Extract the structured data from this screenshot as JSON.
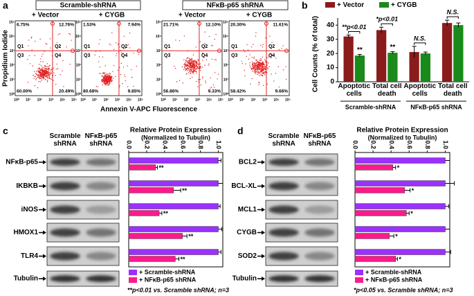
{
  "figure": {
    "panel_labels": [
      "a",
      "b",
      "c",
      "d"
    ],
    "flow": {
      "groups": [
        "Scramble-shRNA",
        "NFκB-p65 shRNA"
      ],
      "conditions": [
        "+ Vector",
        "+ CYGB",
        "+ Vector",
        "+ CYGB"
      ],
      "quadrants": [
        "Q1",
        "Q2",
        "Q3",
        "Q4"
      ],
      "percents": [
        [
          "6.75%",
          "12.76%",
          "60.00%",
          "20.49%"
        ],
        [
          "1.53%",
          "7.94%",
          "80.68%",
          "9.85%"
        ],
        [
          "21.71%",
          "12.10%",
          "56.86%",
          "9.33%"
        ],
        [
          "20.30%",
          "11.61%",
          "58.42%",
          "9.66%"
        ]
      ],
      "ticks": [
        "10⁰",
        "10¹",
        "10²",
        "10³",
        "10⁴",
        "10⁵"
      ],
      "ylabel": "Propidium Iodide",
      "xlabel": "Annexin V-APC Fluorescence"
    },
    "blots": [
      {
        "columns": [
          "Scramble shRNA",
          "NFκB-p65 shRNA"
        ],
        "rows": [
          "NFκB-p65",
          "IKBKB",
          "iNOS",
          "HMOX1",
          "TLR4",
          "Tubulin"
        ]
      },
      {
        "columns": [
          "Scramble shRNA",
          "NFκB-p65 shRNA"
        ],
        "rows": [
          "BCL2",
          "BCL-XL",
          "MCL1",
          "CYGB",
          "SOD2",
          "Tubulin"
        ]
      }
    ]
  },
  "chart_data": [
    {
      "type": "bar",
      "ylabel": "Cell Counts (% of total)",
      "categories": [
        "Apoptotic cells",
        "Total cell death",
        "Apoptotic cells",
        "Total cell death"
      ],
      "group_labels": [
        "Scramble-shRNA",
        "NFκB-p65 shRNA"
      ],
      "series": [
        {
          "name": "+ Vector",
          "color": "#8b1c1c",
          "values": [
            32,
            36.5,
            21,
            41.5
          ],
          "errors": [
            1,
            2,
            4,
            2
          ]
        },
        {
          "name": "+ CYGB",
          "color": "#1a8a1a",
          "values": [
            18.5,
            20.5,
            20,
            40
          ],
          "errors": [
            0.8,
            0.8,
            1,
            1.5
          ]
        }
      ],
      "annotations": [
        "**p<0.01",
        "*p<0.01",
        "N.S.",
        "N.S.",
        "**",
        "**"
      ],
      "ylim": [
        0,
        45
      ],
      "yticks": [
        0,
        10,
        20,
        30,
        40
      ]
    },
    {
      "type": "hbar",
      "title": "Relative Protein Expression",
      "subtitle": "(Normalized to Tubulin)",
      "footnote": "**p<0.01 vs. Scramble shRNA; n=3",
      "categories": [
        "NFκB-p65",
        "IKBKB",
        "iNOS",
        "HMOX1",
        "TLR4"
      ],
      "series": [
        {
          "name": "+ Scramble-shRNA",
          "color": "#9b30ff",
          "values": [
            1,
            1,
            1,
            1,
            1
          ],
          "errors": [
            0.03,
            0.05,
            0.02,
            0.04,
            0.03
          ]
        },
        {
          "name": "+ NFκB-p65 shRNA",
          "color": "#ff1a8c",
          "values": [
            0.3,
            0.5,
            0.34,
            0.6,
            0.52
          ],
          "errors": [
            0.02,
            0.08,
            0.03,
            0.05,
            0.04
          ]
        }
      ],
      "annotations": [
        "**",
        "**",
        "**",
        "**",
        "**"
      ],
      "xlim": [
        0,
        1.05
      ],
      "xticks": [
        {
          "value": 0,
          "label": "0.0"
        },
        0.2,
        0.4,
        0.6,
        0.8,
        {
          "value": 1,
          "label": "1.0"
        }
      ]
    },
    {
      "type": "hbar",
      "title": "Relative Protein Expression",
      "subtitle": "(Normalized to Tubulin)",
      "footnote": "*p<0.05 vs. Scramble shRNA; n=3",
      "categories": [
        "BCL2",
        "BCL-XL",
        "MCL1",
        "CYGB",
        "SOD2"
      ],
      "series": [
        {
          "name": "+ Scramble-shRNA",
          "color": "#9b30ff",
          "values": [
            1,
            1,
            1,
            1,
            1
          ],
          "errors": [
            0.05,
            0.1,
            0.04,
            0.05,
            0.06
          ]
        },
        {
          "name": "+ NFκB-p65 shRNA",
          "color": "#ff1a8c",
          "values": [
            0.42,
            0.55,
            0.57,
            0.38,
            0.45
          ],
          "errors": [
            0.03,
            0.06,
            0.03,
            0.05,
            0.02
          ]
        }
      ],
      "annotations": [
        "*",
        "*",
        "*",
        "*",
        "*"
      ],
      "xlim": [
        0,
        1.05
      ],
      "xticks": [
        {
          "value": 0,
          "label": "0.0"
        },
        0.2,
        0.4,
        0.6,
        0.8,
        {
          "value": 1,
          "label": "1.0"
        }
      ]
    }
  ]
}
